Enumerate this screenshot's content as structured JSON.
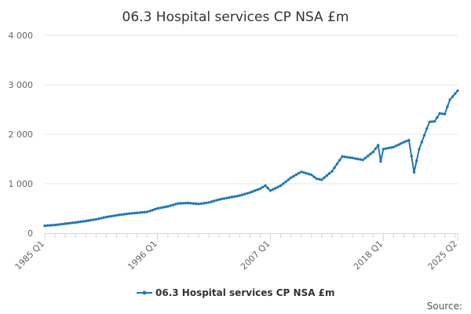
{
  "chart_data": {
    "type": "line",
    "title": "06.3 Hospital services CP NSA £m",
    "xlabel": "",
    "ylabel": "",
    "ylim": [
      0,
      4000
    ],
    "y_ticks": [
      0,
      1000,
      2000,
      3000,
      4000
    ],
    "y_tick_labels": [
      "0",
      "1 000",
      "2 000",
      "3 000",
      "4 000"
    ],
    "x_tick_labels": [
      "1985 Q1",
      "1996 Q1",
      "2007 Q1",
      "2018 Q1",
      "2025 Q2"
    ],
    "x_range": [
      "1985 Q1",
      "2025 Q2"
    ],
    "grid": true,
    "legend_position": "bottom",
    "series": [
      {
        "name": "06.3 Hospital services CP NSA £m",
        "color": "#1f77b4",
        "anchors": [
          [
            "1985 Q1",
            150
          ],
          [
            "1986 Q1",
            165
          ],
          [
            "1987 Q1",
            190
          ],
          [
            "1988 Q1",
            215
          ],
          [
            "1989 Q1",
            245
          ],
          [
            "1990 Q1",
            280
          ],
          [
            "1991 Q1",
            325
          ],
          [
            "1992 Q1",
            360
          ],
          [
            "1993 Q1",
            390
          ],
          [
            "1994 Q1",
            410
          ],
          [
            "1995 Q1",
            430
          ],
          [
            "1996 Q1",
            500
          ],
          [
            "1997 Q1",
            540
          ],
          [
            "1998 Q1",
            600
          ],
          [
            "1999 Q1",
            610
          ],
          [
            "2000 Q1",
            590
          ],
          [
            "2001 Q1",
            620
          ],
          [
            "2002 Q1",
            680
          ],
          [
            "2003 Q1",
            720
          ],
          [
            "2004 Q1",
            760
          ],
          [
            "2005 Q1",
            820
          ],
          [
            "2006 Q1",
            900
          ],
          [
            "2006 Q3",
            960
          ],
          [
            "2007 Q1",
            860
          ],
          [
            "2008 Q1",
            960
          ],
          [
            "2009 Q1",
            1120
          ],
          [
            "2010 Q1",
            1240
          ],
          [
            "2010 Q3",
            1210
          ],
          [
            "2011 Q1",
            1180
          ],
          [
            "2011 Q3",
            1100
          ],
          [
            "2012 Q1",
            1080
          ],
          [
            "2013 Q1",
            1250
          ],
          [
            "2014 Q1",
            1550
          ],
          [
            "2015 Q1",
            1520
          ],
          [
            "2016 Q1",
            1480
          ],
          [
            "2017 Q1",
            1640
          ],
          [
            "2017 Q3",
            1780
          ],
          [
            "2017 Q4",
            1450
          ],
          [
            "2018 Q1",
            1700
          ],
          [
            "2019 Q1",
            1740
          ],
          [
            "2020 Q1",
            1840
          ],
          [
            "2020 Q3",
            1880
          ],
          [
            "2021 Q1",
            1230
          ],
          [
            "2021 Q3",
            1700
          ],
          [
            "2022 Q1",
            1980
          ],
          [
            "2022 Q3",
            2250
          ],
          [
            "2023 Q1",
            2260
          ],
          [
            "2023 Q3",
            2420
          ],
          [
            "2024 Q1",
            2410
          ],
          [
            "2024 Q3",
            2700
          ],
          [
            "2025 Q1",
            2820
          ],
          [
            "2025 Q2",
            2880
          ]
        ]
      }
    ]
  },
  "source_label": "Source:"
}
